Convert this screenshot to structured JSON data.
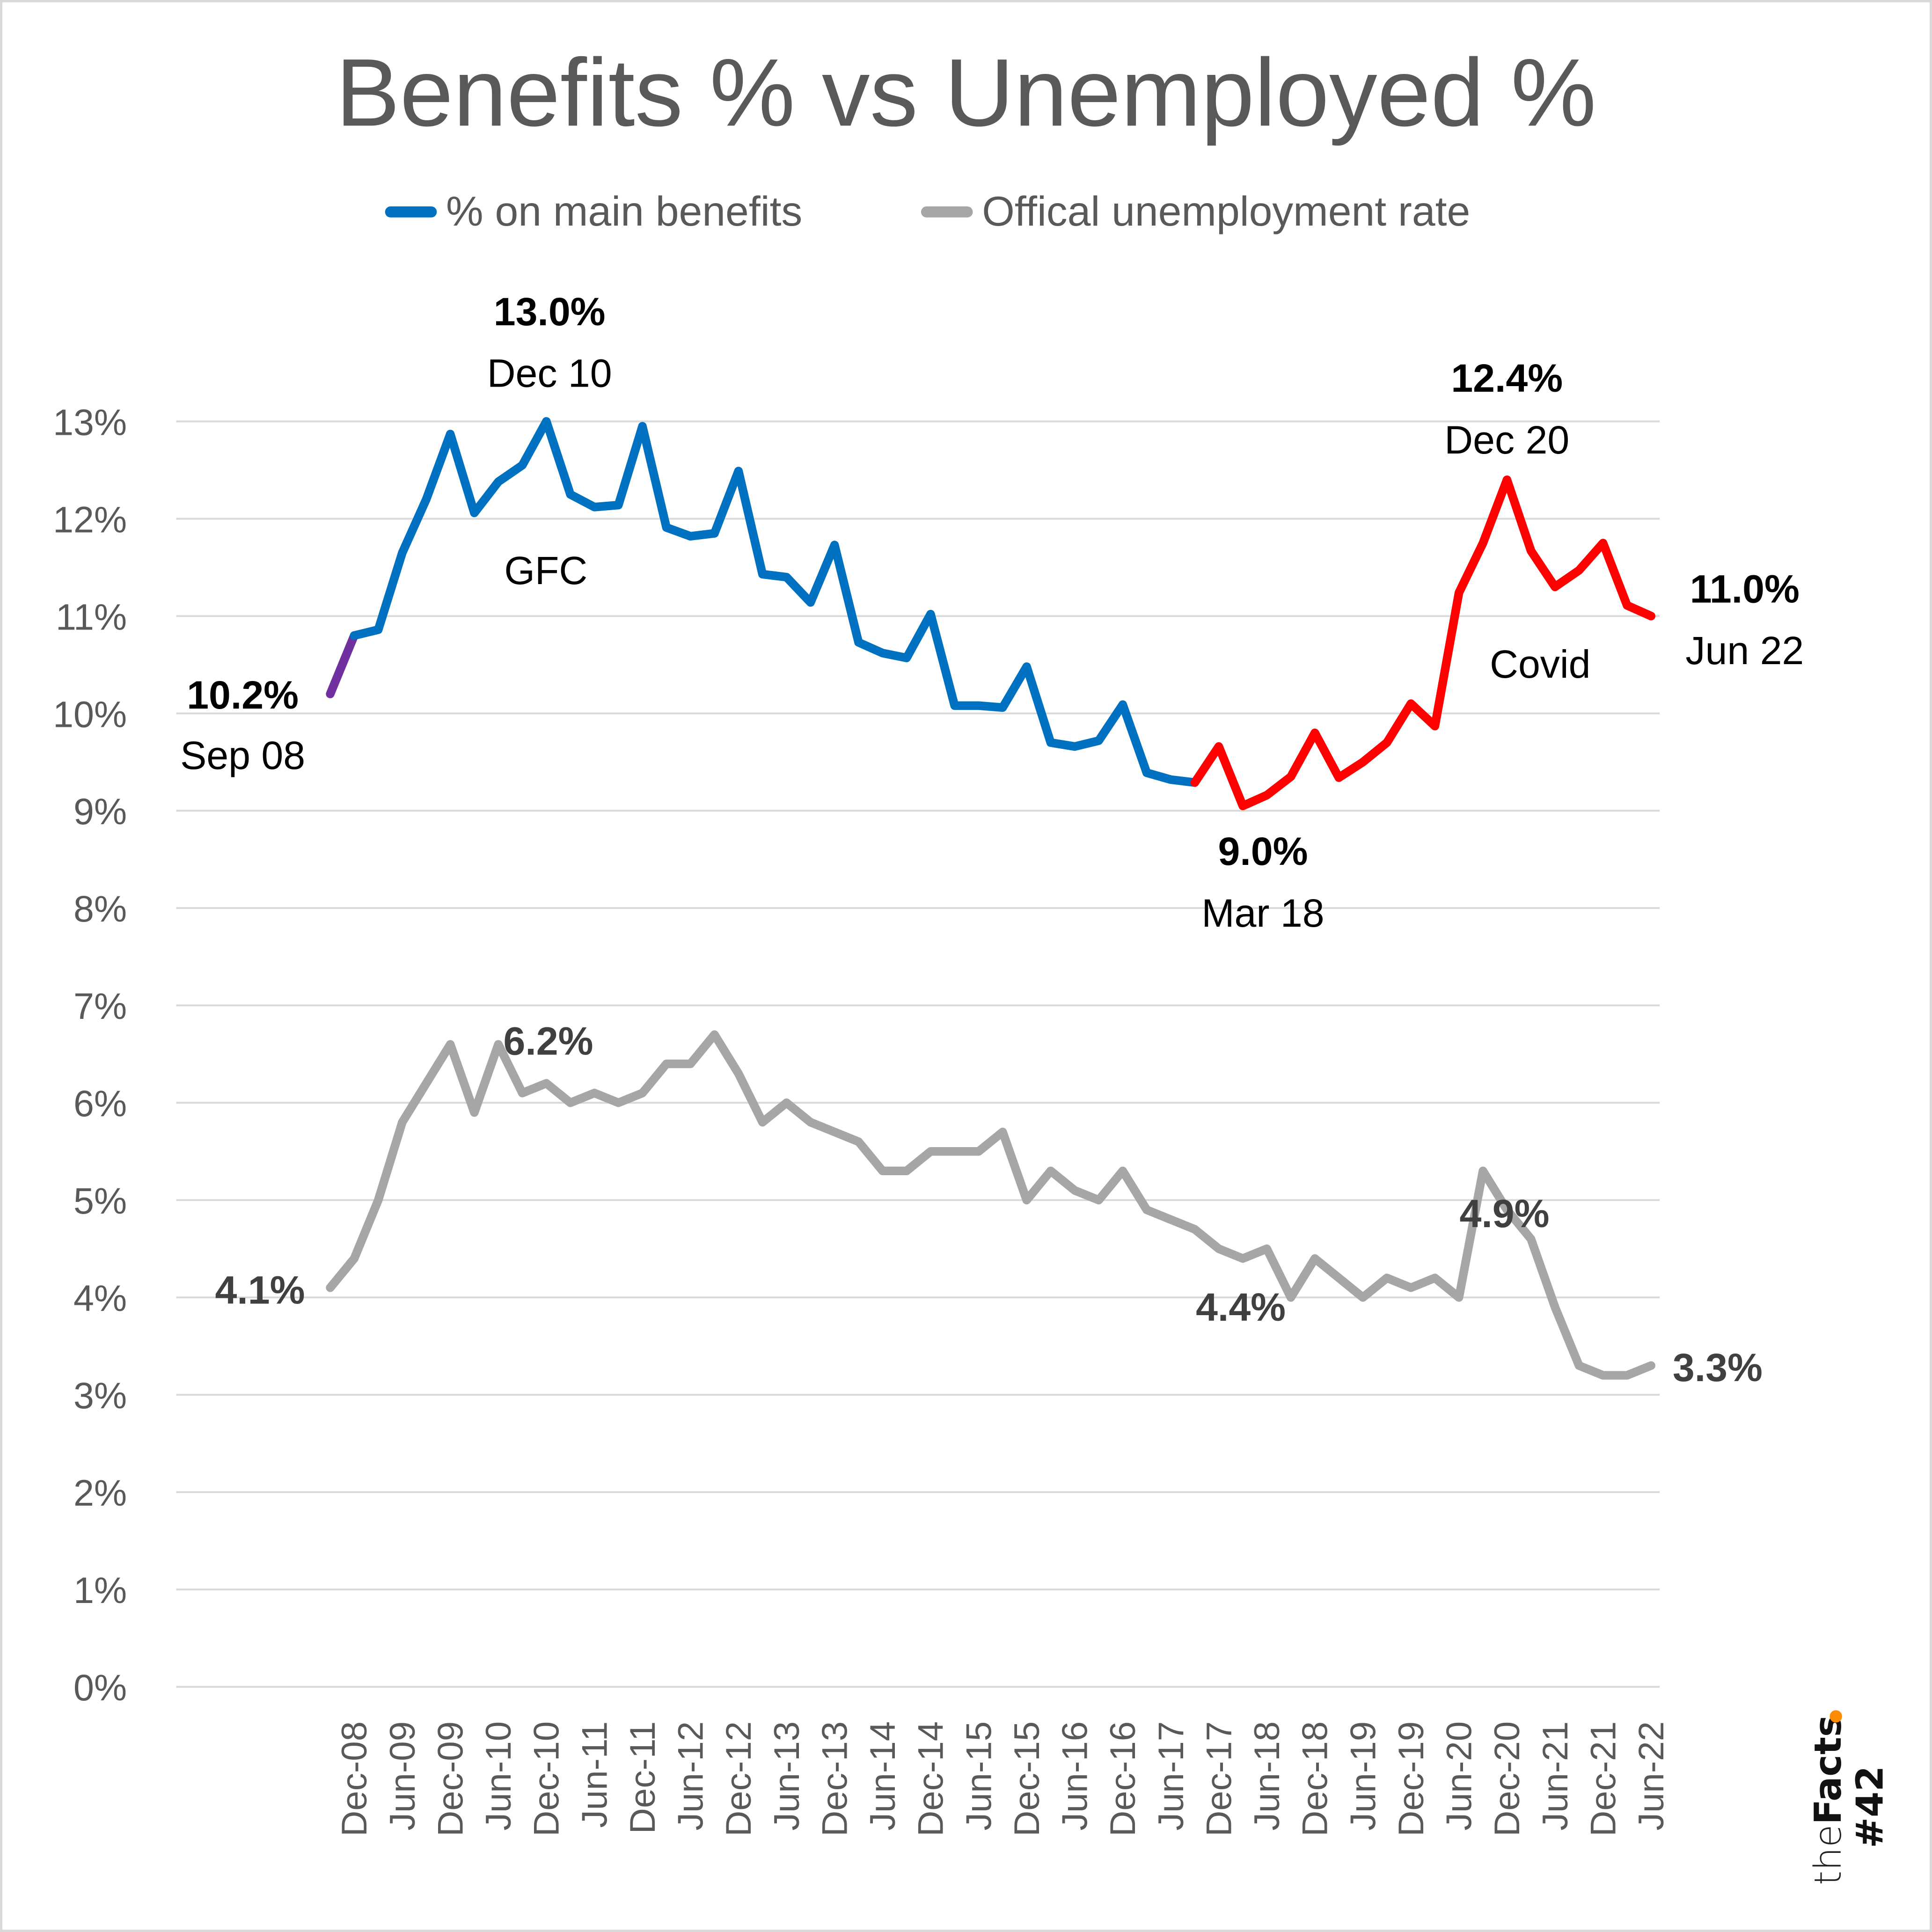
{
  "chart_data": {
    "type": "line",
    "title": "Benefits % vs Unemployed %",
    "xlabel": "",
    "ylabel": "",
    "ylim": [
      0,
      13
    ],
    "yticks": [
      "0%",
      "1%",
      "2%",
      "3%",
      "4%",
      "5%",
      "6%",
      "7%",
      "8%",
      "9%",
      "10%",
      "11%",
      "12%",
      "13%"
    ],
    "grid": true,
    "legend_position": "top",
    "x": [
      "Sep-08",
      "Dec-08",
      "Mar-09",
      "Jun-09",
      "Sep-09",
      "Dec-09",
      "Mar-10",
      "Jun-10",
      "Sep-10",
      "Dec-10",
      "Mar-11",
      "Jun-11",
      "Sep-11",
      "Dec-11",
      "Mar-12",
      "Jun-12",
      "Sep-12",
      "Dec-12",
      "Mar-13",
      "Jun-13",
      "Sep-13",
      "Dec-13",
      "Mar-14",
      "Jun-14",
      "Sep-14",
      "Dec-14",
      "Mar-15",
      "Jun-15",
      "Sep-15",
      "Dec-15",
      "Mar-16",
      "Jun-16",
      "Sep-16",
      "Dec-16",
      "Mar-17",
      "Jun-17",
      "Sep-17",
      "Dec-17",
      "Mar-18",
      "Jun-18",
      "Sep-18",
      "Dec-18",
      "Mar-19",
      "Jun-19",
      "Sep-19",
      "Dec-19",
      "Mar-20",
      "Jun-20",
      "Sep-20",
      "Dec-20",
      "Mar-21",
      "Jun-21",
      "Sep-21",
      "Dec-21",
      "Mar-22",
      "Jun-22"
    ],
    "xtick_labels": [
      "Dec-08",
      "Jun-09",
      "Dec-09",
      "Jun-10",
      "Dec-10",
      "Jun-11",
      "Dec-11",
      "Jun-12",
      "Dec-12",
      "Jun-13",
      "Dec-13",
      "Jun-14",
      "Dec-14",
      "Jun-15",
      "Dec-15",
      "Jun-16",
      "Dec-16",
      "Jun-17",
      "Dec-17",
      "Jun-18",
      "Dec-18",
      "Jun-19",
      "Dec-19",
      "Jun-20",
      "Dec-20",
      "Jun-21",
      "Dec-21",
      "Jun-22"
    ],
    "series": [
      {
        "name": "% on main benefits",
        "color": "#0070C0",
        "segment_colors": [
          {
            "from": "Sep-08",
            "to": "Dec-08",
            "color": "#7030A0"
          },
          {
            "from": "Dec-08",
            "to": "Sep-17",
            "color": "#0070C0"
          },
          {
            "from": "Sep-17",
            "to": "Jun-22",
            "color": "#FF0000"
          }
        ],
        "values": [
          10.2,
          10.8,
          10.86,
          11.65,
          12.2,
          12.87,
          12.06,
          12.38,
          12.55,
          13.0,
          12.25,
          12.12,
          12.14,
          12.95,
          11.91,
          11.82,
          11.85,
          12.49,
          11.43,
          11.4,
          11.14,
          11.73,
          10.73,
          10.62,
          10.57,
          11.02,
          10.08,
          10.08,
          10.06,
          10.48,
          9.7,
          9.66,
          9.72,
          10.09,
          9.39,
          9.32,
          9.29,
          9.66,
          9.05,
          9.16,
          9.35,
          9.8,
          9.34,
          9.5,
          9.7,
          10.1,
          9.87,
          11.24,
          11.75,
          12.4,
          11.67,
          11.3,
          11.47,
          11.75,
          11.11,
          11.0
        ]
      },
      {
        "name": "Offical unemployment rate",
        "color": "#A6A6A6",
        "values": [
          4.1,
          4.4,
          5.0,
          5.8,
          6.2,
          6.6,
          5.9,
          6.6,
          6.1,
          6.2,
          6.0,
          6.1,
          6.0,
          6.1,
          6.4,
          6.4,
          6.7,
          6.3,
          5.8,
          6.0,
          5.8,
          5.7,
          5.6,
          5.3,
          5.3,
          5.5,
          5.5,
          5.5,
          5.7,
          5.0,
          5.3,
          5.1,
          5.0,
          5.3,
          4.9,
          4.8,
          4.7,
          4.5,
          4.4,
          4.5,
          4.0,
          4.4,
          4.2,
          4.0,
          4.2,
          4.1,
          4.2,
          4.0,
          5.3,
          4.9,
          4.6,
          3.9,
          3.3,
          3.2,
          3.2,
          3.3
        ]
      }
    ],
    "annotations": [
      {
        "value_label": "10.2%",
        "date_label": "Sep 08",
        "series": "% on main benefits"
      },
      {
        "value_label": "13.0%",
        "date_label": "Dec 10",
        "series": "% on main benefits"
      },
      {
        "text": "GFC"
      },
      {
        "value_label": "9.0%",
        "date_label": "Mar 18",
        "series": "% on main benefits"
      },
      {
        "value_label": "12.4%",
        "date_label": "Dec 20",
        "series": "% on main benefits"
      },
      {
        "text": "Covid"
      },
      {
        "value_label": "11.0%",
        "date_label": "Jun 22",
        "series": "% on main benefits"
      },
      {
        "value_label": "4.1%",
        "series": "Offical unemployment rate"
      },
      {
        "value_label": "6.2%",
        "series": "Offical unemployment rate"
      },
      {
        "value_label": "4.4%",
        "series": "Offical unemployment rate"
      },
      {
        "value_label": "4.9%",
        "series": "Offical unemployment rate"
      },
      {
        "value_label": "3.3%",
        "series": "Offical unemployment rate"
      }
    ]
  },
  "branding": {
    "prefix": "the",
    "name": "Facts",
    "dot_color": "#FF8C00",
    "issue": "#42"
  }
}
